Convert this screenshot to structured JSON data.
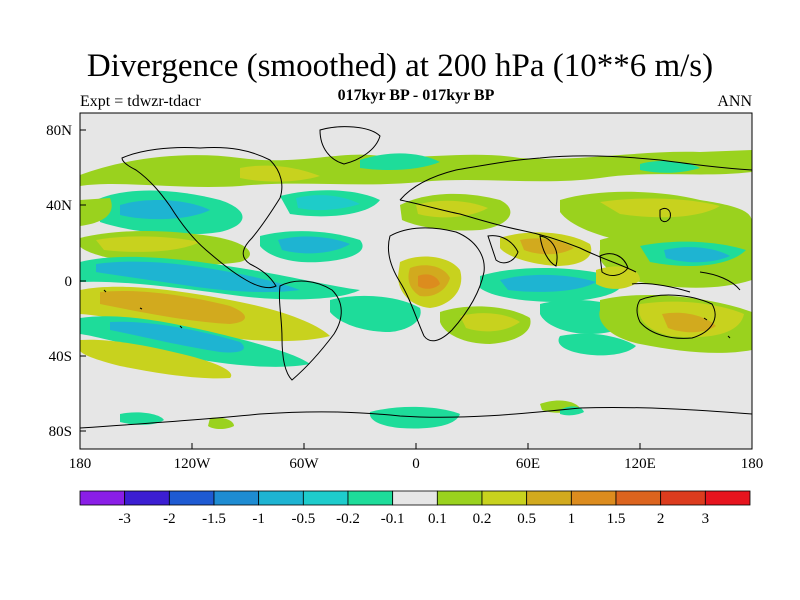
{
  "title": "Divergence (smoothed) at 200 hPa (10**6 m/s)",
  "subtitle": "017kyr BP - 017kyr BP",
  "left_label": "Expt = tdwzr-tdacr",
  "right_label": "ANN",
  "map": {
    "lon_ticks": [
      "180",
      "120W",
      "60W",
      "0",
      "60E",
      "120E",
      "180"
    ],
    "lat_ticks": [
      "80N",
      "40N",
      "0",
      "40S",
      "80S"
    ],
    "background_color": "#e6e6e6"
  },
  "colorbar": {
    "labels": [
      "-3",
      "-2",
      "-1.5",
      "-1",
      "-0.5",
      "-0.2",
      "-0.1",
      "0.1",
      "0.2",
      "0.5",
      "1",
      "1.5",
      "2",
      "3"
    ],
    "colors": [
      "#8a1ee6",
      "#3c1ed2",
      "#1e5ad2",
      "#1e8cd2",
      "#1eb4d2",
      "#1ecccc",
      "#1edc9a",
      "#e6e6e6",
      "#9ad21e",
      "#c8d21e",
      "#d2aa1e",
      "#dc8c1e",
      "#dc641e",
      "#dc3c1e",
      "#e6141e"
    ]
  }
}
